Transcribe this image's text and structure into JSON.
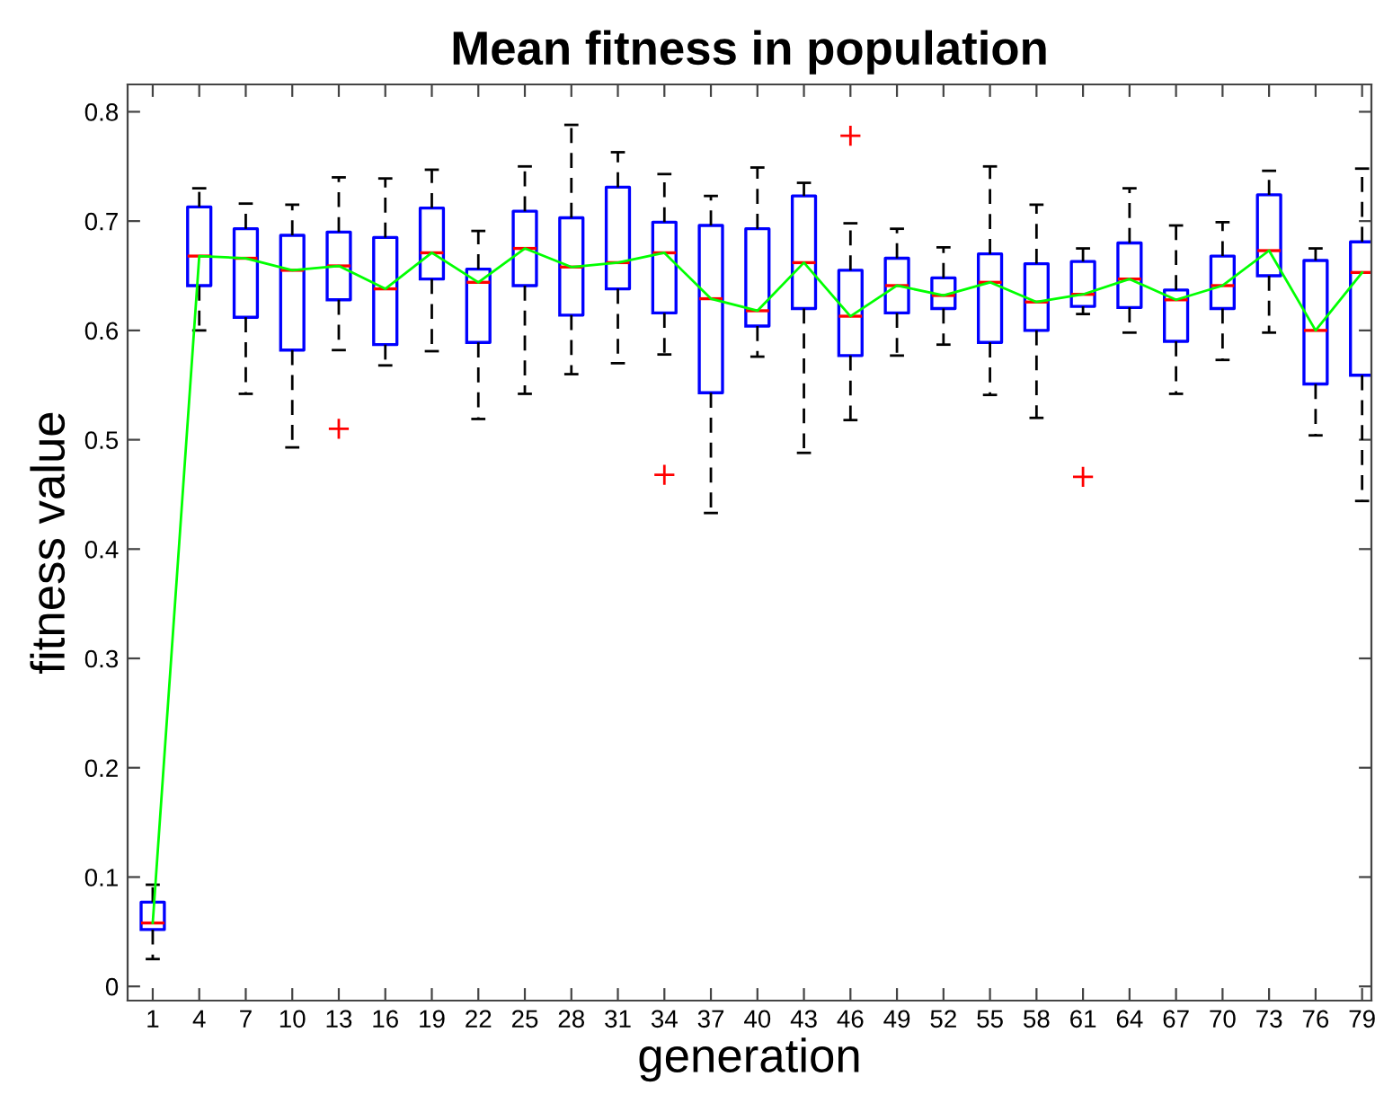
{
  "chart_data": {
    "type": "box",
    "title": "Mean fitness in population",
    "xlabel": "generation",
    "ylabel": "fitness value",
    "categories": [
      "1",
      "4",
      "7",
      "10",
      "13",
      "16",
      "19",
      "22",
      "25",
      "28",
      "31",
      "34",
      "37",
      "40",
      "43",
      "46",
      "49",
      "52",
      "55",
      "58",
      "61",
      "64",
      "67",
      "70",
      "73",
      "76",
      "79"
    ],
    "ylim": [
      -0.013,
      0.825
    ],
    "yticks": [
      0,
      0.1,
      0.2,
      0.3,
      0.4,
      0.5,
      0.6,
      0.7,
      0.8
    ],
    "grid": false,
    "series": [
      {
        "marker": "cross",
        "color": "#0000ff",
        "boxes": [
          {
            "low": 0.025,
            "q1": 0.052,
            "median": 0.058,
            "q3": 0.077,
            "high": 0.093
          },
          {
            "low": 0.6,
            "q1": 0.641,
            "median": 0.668,
            "q3": 0.713,
            "high": 0.73
          },
          {
            "low": 0.542,
            "q1": 0.612,
            "median": 0.666,
            "q3": 0.693,
            "high": 0.716
          },
          {
            "low": 0.493,
            "q1": 0.582,
            "median": 0.655,
            "q3": 0.687,
            "high": 0.715
          },
          {
            "low": 0.582,
            "q1": 0.628,
            "median": 0.659,
            "q3": 0.69,
            "high": 0.74,
            "outliers": [
              0.51
            ]
          },
          {
            "low": 0.568,
            "q1": 0.587,
            "median": 0.638,
            "q3": 0.685,
            "high": 0.739
          },
          {
            "low": 0.581,
            "q1": 0.647,
            "median": 0.671,
            "q3": 0.712,
            "high": 0.747
          },
          {
            "low": 0.519,
            "q1": 0.589,
            "median": 0.644,
            "q3": 0.656,
            "high": 0.691
          },
          {
            "low": 0.542,
            "q1": 0.641,
            "median": 0.675,
            "q3": 0.709,
            "high": 0.75
          },
          {
            "low": 0.56,
            "q1": 0.614,
            "median": 0.658,
            "q3": 0.703,
            "high": 0.788
          },
          {
            "low": 0.57,
            "q1": 0.638,
            "median": 0.662,
            "q3": 0.731,
            "high": 0.763
          },
          {
            "low": 0.578,
            "q1": 0.616,
            "median": 0.671,
            "q3": 0.699,
            "high": 0.743,
            "outliers": [
              0.468
            ]
          },
          {
            "low": 0.433,
            "q1": 0.543,
            "median": 0.629,
            "q3": 0.696,
            "high": 0.723
          },
          {
            "low": 0.576,
            "q1": 0.604,
            "median": 0.618,
            "q3": 0.693,
            "high": 0.749
          },
          {
            "low": 0.488,
            "q1": 0.62,
            "median": 0.662,
            "q3": 0.723,
            "high": 0.735
          },
          {
            "low": 0.518,
            "q1": 0.577,
            "median": 0.613,
            "q3": 0.655,
            "high": 0.698,
            "outliers": [
              0.778
            ]
          },
          {
            "low": 0.577,
            "q1": 0.616,
            "median": 0.641,
            "q3": 0.666,
            "high": 0.693
          },
          {
            "low": 0.587,
            "q1": 0.62,
            "median": 0.632,
            "q3": 0.648,
            "high": 0.676
          },
          {
            "low": 0.541,
            "q1": 0.589,
            "median": 0.644,
            "q3": 0.67,
            "high": 0.75
          },
          {
            "low": 0.52,
            "q1": 0.6,
            "median": 0.626,
            "q3": 0.661,
            "high": 0.715
          },
          {
            "low": 0.615,
            "q1": 0.622,
            "median": 0.633,
            "q3": 0.663,
            "high": 0.675,
            "outliers": [
              0.466
            ]
          },
          {
            "low": 0.598,
            "q1": 0.621,
            "median": 0.647,
            "q3": 0.68,
            "high": 0.73
          },
          {
            "low": 0.542,
            "q1": 0.59,
            "median": 0.628,
            "q3": 0.637,
            "high": 0.696
          },
          {
            "low": 0.573,
            "q1": 0.62,
            "median": 0.641,
            "q3": 0.668,
            "high": 0.699
          },
          {
            "low": 0.598,
            "q1": 0.65,
            "median": 0.673,
            "q3": 0.724,
            "high": 0.746
          },
          {
            "low": 0.504,
            "q1": 0.551,
            "median": 0.6,
            "q3": 0.664,
            "high": 0.675
          },
          {
            "low": 0.444,
            "q1": 0.559,
            "median": 0.653,
            "q3": 0.681,
            "high": 0.748
          }
        ]
      },
      {
        "type": "line",
        "color": "#00ff00",
        "x": [
          "1",
          "4",
          "7",
          "10",
          "13",
          "16",
          "19",
          "22",
          "25",
          "28",
          "31",
          "34",
          "37",
          "40",
          "43",
          "46",
          "49",
          "52",
          "55",
          "58",
          "61",
          "64",
          "67",
          "70",
          "73",
          "76",
          "79"
        ],
        "values": [
          0.058,
          0.668,
          0.666,
          0.655,
          0.659,
          0.638,
          0.671,
          0.644,
          0.675,
          0.658,
          0.662,
          0.671,
          0.629,
          0.618,
          0.662,
          0.613,
          0.641,
          0.632,
          0.644,
          0.626,
          0.633,
          0.647,
          0.628,
          0.641,
          0.673,
          0.6,
          0.653
        ]
      }
    ]
  }
}
